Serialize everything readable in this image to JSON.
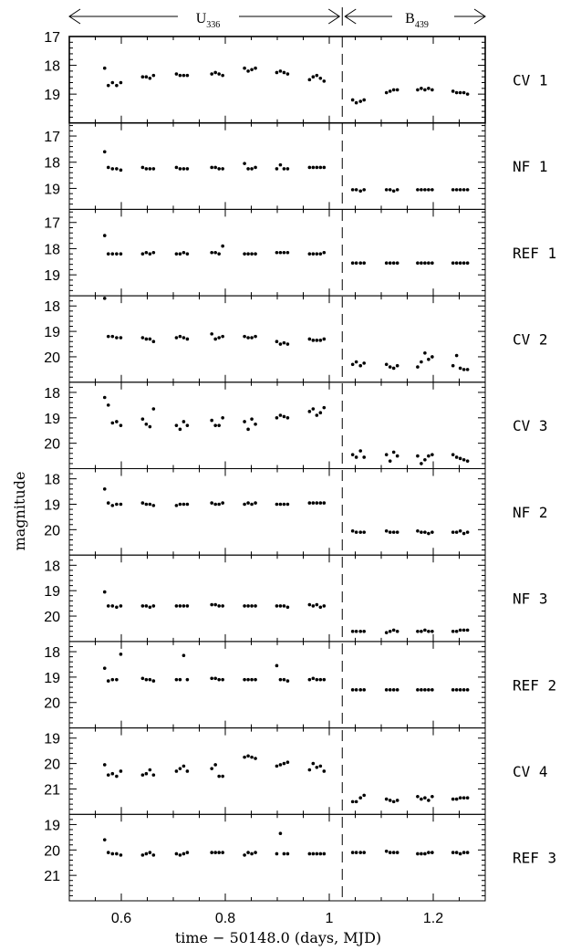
{
  "chart_data": {
    "type": "scatter",
    "xlabel": "time − 50148.0 (days, MJD)",
    "ylabel": "magnitude",
    "xlim": [
      0.5,
      1.3
    ],
    "xticks": [
      0.6,
      0.8,
      1.0,
      1.2
    ],
    "xtick_labels": [
      "0.6",
      "0.8",
      "1",
      "1.2"
    ],
    "filter_boundary_x": 1.025,
    "bands": [
      {
        "label": "U",
        "sub": "336"
      },
      {
        "label": "B",
        "sub": "439"
      }
    ],
    "panels": [
      {
        "name": "CV 1",
        "ylim": [
          17,
          20
        ],
        "yticks": [
          17,
          18,
          19
        ],
        "x": [
          0.568,
          0.575,
          0.583,
          0.591,
          0.599,
          0.641,
          0.648,
          0.655,
          0.662,
          0.706,
          0.713,
          0.72,
          0.727,
          0.774,
          0.781,
          0.788,
          0.795,
          0.837,
          0.844,
          0.851,
          0.858,
          0.899,
          0.906,
          0.913,
          0.92,
          0.962,
          0.969,
          0.976,
          0.983,
          0.99,
          1.045,
          1.052,
          1.06,
          1.067,
          1.11,
          1.117,
          1.124,
          1.131,
          1.17,
          1.177,
          1.184,
          1.191,
          1.198,
          1.238,
          1.245,
          1.252,
          1.259,
          1.266
        ],
        "y": [
          18.1,
          18.7,
          18.6,
          18.7,
          18.6,
          18.4,
          18.4,
          18.45,
          18.35,
          18.3,
          18.35,
          18.35,
          18.35,
          18.3,
          18.25,
          18.3,
          18.35,
          18.1,
          18.2,
          18.15,
          18.1,
          18.25,
          18.2,
          18.25,
          18.3,
          18.5,
          18.4,
          18.35,
          18.45,
          18.55,
          19.2,
          19.3,
          19.25,
          19.2,
          18.95,
          18.9,
          18.85,
          18.85,
          18.85,
          18.8,
          18.85,
          18.8,
          18.85,
          18.9,
          18.95,
          18.95,
          18.95,
          19.0
        ]
      },
      {
        "name": "NF 1",
        "ylim": [
          16.5,
          19.8
        ],
        "yticks": [
          17,
          18,
          19
        ],
        "x": [
          0.568,
          0.575,
          0.583,
          0.591,
          0.599,
          0.641,
          0.648,
          0.655,
          0.662,
          0.706,
          0.713,
          0.72,
          0.727,
          0.774,
          0.781,
          0.788,
          0.795,
          0.837,
          0.844,
          0.851,
          0.858,
          0.899,
          0.906,
          0.913,
          0.92,
          0.962,
          0.969,
          0.976,
          0.983,
          0.99,
          1.045,
          1.052,
          1.06,
          1.067,
          1.11,
          1.117,
          1.124,
          1.131,
          1.17,
          1.177,
          1.184,
          1.191,
          1.198,
          1.238,
          1.245,
          1.252,
          1.259,
          1.266
        ],
        "y": [
          17.6,
          18.2,
          18.25,
          18.25,
          18.3,
          18.2,
          18.25,
          18.25,
          18.25,
          18.2,
          18.25,
          18.25,
          18.25,
          18.2,
          18.2,
          18.25,
          18.25,
          18.05,
          18.25,
          18.25,
          18.2,
          18.25,
          18.1,
          18.25,
          18.25,
          18.2,
          18.2,
          18.2,
          18.2,
          18.2,
          19.05,
          19.05,
          19.1,
          19.05,
          19.05,
          19.05,
          19.1,
          19.05,
          19.05,
          19.05,
          19.05,
          19.05,
          19.05,
          19.05,
          19.05,
          19.05,
          19.05,
          19.05
        ]
      },
      {
        "name": "REF 1",
        "ylim": [
          16.5,
          19.8
        ],
        "yticks": [
          17,
          18,
          19
        ],
        "x": [
          0.568,
          0.575,
          0.583,
          0.591,
          0.599,
          0.641,
          0.648,
          0.655,
          0.662,
          0.706,
          0.713,
          0.72,
          0.727,
          0.774,
          0.781,
          0.788,
          0.795,
          0.837,
          0.844,
          0.851,
          0.858,
          0.899,
          0.906,
          0.913,
          0.92,
          0.962,
          0.969,
          0.976,
          0.983,
          0.99,
          1.045,
          1.052,
          1.06,
          1.067,
          1.11,
          1.117,
          1.124,
          1.131,
          1.17,
          1.177,
          1.184,
          1.191,
          1.198,
          1.238,
          1.245,
          1.252,
          1.259,
          1.266
        ],
        "y": [
          17.5,
          18.2,
          18.2,
          18.2,
          18.2,
          18.2,
          18.15,
          18.2,
          18.15,
          18.2,
          18.2,
          18.15,
          18.2,
          18.15,
          18.15,
          18.2,
          17.9,
          18.2,
          18.2,
          18.2,
          18.2,
          18.15,
          18.15,
          18.15,
          18.15,
          18.2,
          18.2,
          18.2,
          18.2,
          18.15,
          18.55,
          18.55,
          18.55,
          18.55,
          18.55,
          18.55,
          18.55,
          18.55,
          18.55,
          18.55,
          18.55,
          18.55,
          18.55,
          18.55,
          18.55,
          18.55,
          18.55,
          18.55
        ]
      },
      {
        "name": "CV 2",
        "ylim": [
          17.6,
          21.0
        ],
        "yticks": [
          18,
          19,
          20
        ],
        "x": [
          0.568,
          0.575,
          0.583,
          0.591,
          0.599,
          0.641,
          0.648,
          0.655,
          0.662,
          0.706,
          0.713,
          0.72,
          0.727,
          0.774,
          0.781,
          0.788,
          0.795,
          0.837,
          0.844,
          0.851,
          0.858,
          0.899,
          0.906,
          0.913,
          0.92,
          0.962,
          0.969,
          0.976,
          0.983,
          0.99,
          1.045,
          1.052,
          1.06,
          1.067,
          1.11,
          1.117,
          1.124,
          1.131,
          1.17,
          1.177,
          1.184,
          1.191,
          1.198,
          1.238,
          1.245,
          1.252,
          1.259,
          1.266
        ],
        "y": [
          17.7,
          19.2,
          19.2,
          19.25,
          19.25,
          19.25,
          19.3,
          19.3,
          19.4,
          19.25,
          19.2,
          19.25,
          19.3,
          19.1,
          19.3,
          19.25,
          19.2,
          19.2,
          19.25,
          19.25,
          19.2,
          19.4,
          19.5,
          19.45,
          19.5,
          19.3,
          19.35,
          19.35,
          19.35,
          19.3,
          20.3,
          20.2,
          20.35,
          20.25,
          20.3,
          20.4,
          20.45,
          20.35,
          20.4,
          20.2,
          19.85,
          20.1,
          20.0,
          20.35,
          19.95,
          20.45,
          20.5,
          20.5
        ]
      },
      {
        "name": "CV 3",
        "ylim": [
          17.6,
          21.0
        ],
        "yticks": [
          18,
          19,
          20
        ],
        "x": [
          0.568,
          0.575,
          0.583,
          0.591,
          0.599,
          0.641,
          0.648,
          0.655,
          0.662,
          0.706,
          0.713,
          0.72,
          0.727,
          0.774,
          0.781,
          0.788,
          0.795,
          0.837,
          0.844,
          0.851,
          0.858,
          0.899,
          0.906,
          0.913,
          0.92,
          0.962,
          0.969,
          0.976,
          0.983,
          0.99,
          1.045,
          1.052,
          1.06,
          1.067,
          1.11,
          1.117,
          1.124,
          1.131,
          1.17,
          1.177,
          1.184,
          1.191,
          1.198,
          1.238,
          1.245,
          1.252,
          1.259,
          1.266
        ],
        "y": [
          18.2,
          18.5,
          19.2,
          19.15,
          19.3,
          19.05,
          19.25,
          19.35,
          18.65,
          19.3,
          19.45,
          19.15,
          19.3,
          19.1,
          19.3,
          19.3,
          19.0,
          19.15,
          19.45,
          19.05,
          19.25,
          19.0,
          18.9,
          18.95,
          19.0,
          18.75,
          18.65,
          18.9,
          18.8,
          18.6,
          20.45,
          20.55,
          20.3,
          20.55,
          20.45,
          20.7,
          20.35,
          20.5,
          20.5,
          20.8,
          20.65,
          20.5,
          20.45,
          20.45,
          20.55,
          20.6,
          20.65,
          20.7
        ]
      },
      {
        "name": "NF 2",
        "ylim": [
          17.6,
          21.0
        ],
        "yticks": [
          18,
          19,
          20
        ],
        "x": [
          0.568,
          0.575,
          0.583,
          0.591,
          0.599,
          0.641,
          0.648,
          0.655,
          0.662,
          0.706,
          0.713,
          0.72,
          0.727,
          0.774,
          0.781,
          0.788,
          0.795,
          0.837,
          0.844,
          0.851,
          0.858,
          0.899,
          0.906,
          0.913,
          0.92,
          0.962,
          0.969,
          0.976,
          0.983,
          0.99,
          1.045,
          1.052,
          1.06,
          1.067,
          1.11,
          1.117,
          1.124,
          1.131,
          1.17,
          1.177,
          1.184,
          1.191,
          1.198,
          1.238,
          1.245,
          1.252,
          1.259,
          1.266
        ],
        "y": [
          18.4,
          18.95,
          19.05,
          19.0,
          19.0,
          18.95,
          19.0,
          19.0,
          19.05,
          19.05,
          19.0,
          19.0,
          19.0,
          18.95,
          19.0,
          19.0,
          18.95,
          19.0,
          18.95,
          19.0,
          18.95,
          19.0,
          19.0,
          19.0,
          19.0,
          18.95,
          18.95,
          18.95,
          18.95,
          18.95,
          20.05,
          20.1,
          20.1,
          20.1,
          20.05,
          20.1,
          20.1,
          20.1,
          20.05,
          20.1,
          20.1,
          20.15,
          20.1,
          20.1,
          20.1,
          20.05,
          20.15,
          20.1
        ]
      },
      {
        "name": "NF 3",
        "ylim": [
          17.6,
          21.0
        ],
        "yticks": [
          18,
          19,
          20
        ],
        "x": [
          0.568,
          0.575,
          0.583,
          0.591,
          0.599,
          0.641,
          0.648,
          0.655,
          0.662,
          0.706,
          0.713,
          0.72,
          0.727,
          0.774,
          0.781,
          0.788,
          0.795,
          0.837,
          0.844,
          0.851,
          0.858,
          0.899,
          0.906,
          0.913,
          0.92,
          0.962,
          0.969,
          0.976,
          0.983,
          0.99,
          1.045,
          1.052,
          1.06,
          1.067,
          1.11,
          1.117,
          1.124,
          1.131,
          1.17,
          1.177,
          1.184,
          1.191,
          1.198,
          1.238,
          1.245,
          1.252,
          1.259,
          1.266
        ],
        "y": [
          19.05,
          19.6,
          19.6,
          19.65,
          19.6,
          19.6,
          19.6,
          19.65,
          19.6,
          19.6,
          19.6,
          19.6,
          19.6,
          19.55,
          19.55,
          19.6,
          19.6,
          19.6,
          19.6,
          19.6,
          19.6,
          19.6,
          19.6,
          19.6,
          19.65,
          19.55,
          19.6,
          19.55,
          19.65,
          19.6,
          20.6,
          20.6,
          20.6,
          20.6,
          20.65,
          20.6,
          20.55,
          20.6,
          20.6,
          20.6,
          20.55,
          20.6,
          20.6,
          20.6,
          20.6,
          20.55,
          20.55,
          20.55
        ]
      },
      {
        "name": "REF 2",
        "ylim": [
          17.6,
          21.0
        ],
        "yticks": [
          18,
          19,
          20
        ],
        "x": [
          0.568,
          0.575,
          0.583,
          0.591,
          0.599,
          0.641,
          0.648,
          0.655,
          0.662,
          0.706,
          0.713,
          0.72,
          0.727,
          0.774,
          0.781,
          0.788,
          0.795,
          0.837,
          0.844,
          0.851,
          0.858,
          0.899,
          0.906,
          0.913,
          0.92,
          0.962,
          0.969,
          0.976,
          0.983,
          0.99,
          1.045,
          1.052,
          1.06,
          1.067,
          1.11,
          1.117,
          1.124,
          1.131,
          1.17,
          1.177,
          1.184,
          1.191,
          1.198,
          1.238,
          1.245,
          1.252,
          1.259,
          1.266
        ],
        "y": [
          18.65,
          19.15,
          19.1,
          19.1,
          18.1,
          19.05,
          19.1,
          19.1,
          19.15,
          19.1,
          19.1,
          18.15,
          19.1,
          19.05,
          19.05,
          19.1,
          19.1,
          19.1,
          19.1,
          19.1,
          19.1,
          18.55,
          19.1,
          19.1,
          19.15,
          19.1,
          19.05,
          19.1,
          19.1,
          19.1,
          19.5,
          19.5,
          19.5,
          19.5,
          19.5,
          19.5,
          19.5,
          19.5,
          19.5,
          19.5,
          19.5,
          19.5,
          19.5,
          19.5,
          19.5,
          19.5,
          19.5,
          19.5
        ]
      },
      {
        "name": "CV 4",
        "ylim": [
          18.6,
          22.0
        ],
        "yticks": [
          19,
          20,
          21
        ],
        "x": [
          0.568,
          0.575,
          0.583,
          0.591,
          0.599,
          0.641,
          0.648,
          0.655,
          0.662,
          0.706,
          0.713,
          0.72,
          0.727,
          0.774,
          0.781,
          0.788,
          0.795,
          0.837,
          0.844,
          0.851,
          0.858,
          0.899,
          0.906,
          0.913,
          0.92,
          0.962,
          0.969,
          0.976,
          0.983,
          0.99,
          1.045,
          1.052,
          1.06,
          1.067,
          1.11,
          1.117,
          1.124,
          1.131,
          1.17,
          1.177,
          1.184,
          1.191,
          1.198,
          1.238,
          1.245,
          1.252,
          1.259,
          1.266
        ],
        "y": [
          20.05,
          20.45,
          20.4,
          20.5,
          20.3,
          20.45,
          20.4,
          20.25,
          20.45,
          20.3,
          20.2,
          20.1,
          20.3,
          20.2,
          20.05,
          20.5,
          20.5,
          19.75,
          19.7,
          19.75,
          19.8,
          20.1,
          20.05,
          20.0,
          19.95,
          20.25,
          20.0,
          20.15,
          20.1,
          20.3,
          21.5,
          21.5,
          21.35,
          21.25,
          21.4,
          21.45,
          21.5,
          21.45,
          21.3,
          21.4,
          21.35,
          21.45,
          21.3,
          21.4,
          21.4,
          21.35,
          21.35,
          21.35
        ]
      },
      {
        "name": "REF 3",
        "ylim": [
          18.6,
          22.0
        ],
        "yticks": [
          19,
          20,
          21
        ],
        "x": [
          0.568,
          0.575,
          0.583,
          0.591,
          0.599,
          0.641,
          0.648,
          0.655,
          0.662,
          0.706,
          0.713,
          0.72,
          0.727,
          0.774,
          0.781,
          0.788,
          0.795,
          0.837,
          0.844,
          0.851,
          0.858,
          0.899,
          0.906,
          0.913,
          0.92,
          0.962,
          0.969,
          0.976,
          0.983,
          0.99,
          1.045,
          1.052,
          1.06,
          1.067,
          1.11,
          1.117,
          1.124,
          1.131,
          1.17,
          1.177,
          1.184,
          1.191,
          1.198,
          1.238,
          1.245,
          1.252,
          1.259,
          1.266
        ],
        "y": [
          19.6,
          20.1,
          20.15,
          20.15,
          20.2,
          20.2,
          20.15,
          20.1,
          20.2,
          20.15,
          20.2,
          20.15,
          20.1,
          20.1,
          20.1,
          20.1,
          20.1,
          20.2,
          20.1,
          20.15,
          20.1,
          20.15,
          19.35,
          20.15,
          20.15,
          20.15,
          20.15,
          20.15,
          20.15,
          20.15,
          20.1,
          20.1,
          20.1,
          20.1,
          20.05,
          20.1,
          20.1,
          20.1,
          20.15,
          20.15,
          20.15,
          20.1,
          20.1,
          20.1,
          20.1,
          20.15,
          20.1,
          20.1
        ]
      }
    ]
  }
}
